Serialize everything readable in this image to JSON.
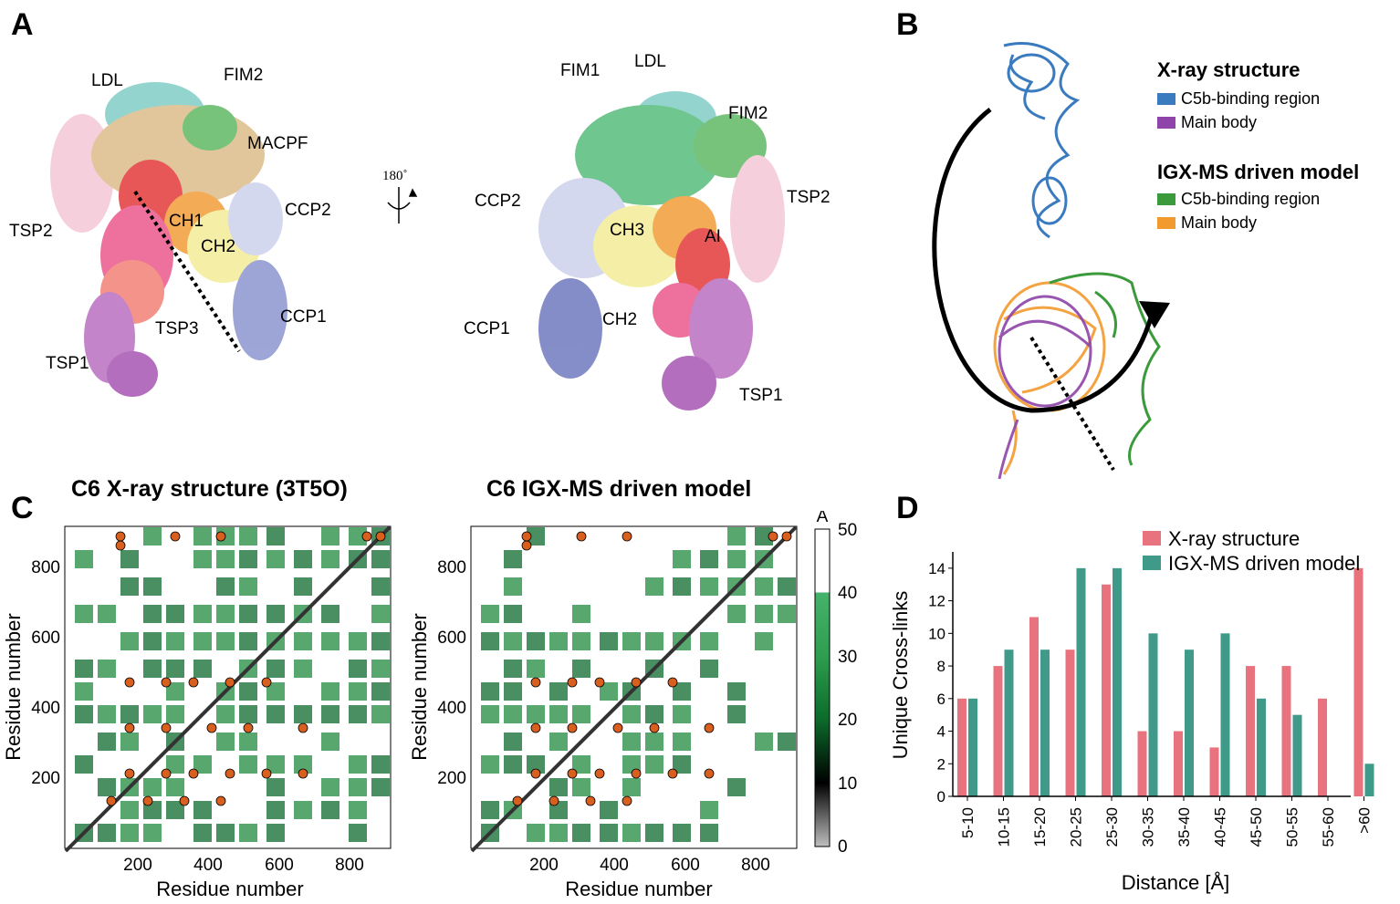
{
  "panels": {
    "a": "A",
    "b": "B",
    "c": "C",
    "d": "D"
  },
  "panel_a": {
    "left_labels": {
      "ldl": "LDL",
      "fim2": "FIM2",
      "macpf": "MACPF",
      "ccp2": "CCP2",
      "tsp2": "TSP2",
      "ch1": "CH1",
      "ch2": "CH2",
      "tsp3": "TSP3",
      "ccp1": "CCP1",
      "tsp1": "TSP1"
    },
    "rotation": "180˚",
    "right_labels": {
      "fim1": "FIM1",
      "ldl": "LDL",
      "fim2": "FIM2",
      "ccp2": "CCP2",
      "tsp2": "TSP2",
      "ch3": "CH3",
      "ai": "AI",
      "ccp1": "CCP1",
      "ch2": "CH2",
      "tsp1": "TSP1"
    }
  },
  "panel_b": {
    "xray_heading": "X-ray structure",
    "xray_items": [
      {
        "label": "C5b-binding region",
        "color": "#3a7bbf"
      },
      {
        "label": "Main body",
        "color": "#8e44a8"
      }
    ],
    "model_heading": "IGX-MS driven model",
    "model_items": [
      {
        "label": "C5b-binding region",
        "color": "#3b9a3b"
      },
      {
        "label": "Main body",
        "color": "#f39a2e"
      }
    ]
  },
  "panel_c": {
    "left_title": "C6 X-ray structure (3T5O)",
    "right_title": "C6 IGX-MS driven model",
    "xlabel": "Residue number",
    "ylabel": "Residue number",
    "ticks": [
      "200",
      "400",
      "600",
      "800"
    ],
    "colorbar": {
      "unit": "Å",
      "ticks": [
        "0",
        "10",
        "20",
        "30",
        "40",
        "50"
      ],
      "cutoff": 40,
      "colors": [
        "#bfbfbf",
        "#000000",
        "#0b6b2a",
        "#2e9e4f",
        "#45b36b"
      ]
    },
    "crosslink_color": "#d95f1e"
  },
  "chart_data": {
    "type": "bar",
    "categories": [
      "5-10",
      "10-15",
      "15-20",
      "20-25",
      "25-30",
      "30-35",
      "35-40",
      "40-45",
      "45-50",
      "50-55",
      "55-60",
      ">60"
    ],
    "series": [
      {
        "name": "X-ray structure",
        "color": "#e8737f",
        "values": [
          6,
          8,
          11,
          9,
          13,
          4,
          4,
          3,
          8,
          8,
          6,
          14
        ]
      },
      {
        "name": "IGX-MS driven model",
        "color": "#3f9a8a",
        "values": [
          6,
          9,
          9,
          14,
          14,
          10,
          9,
          10,
          6,
          5,
          0,
          2
        ]
      }
    ],
    "xlabel": "Distance [Å]",
    "ylabel": "Unique Cross-links",
    "ylim": [
      0,
      15
    ],
    "yticks": [
      "0",
      "2",
      "4",
      "6",
      "8",
      "10",
      "12",
      "14"
    ],
    "legend_position": "top-right"
  }
}
